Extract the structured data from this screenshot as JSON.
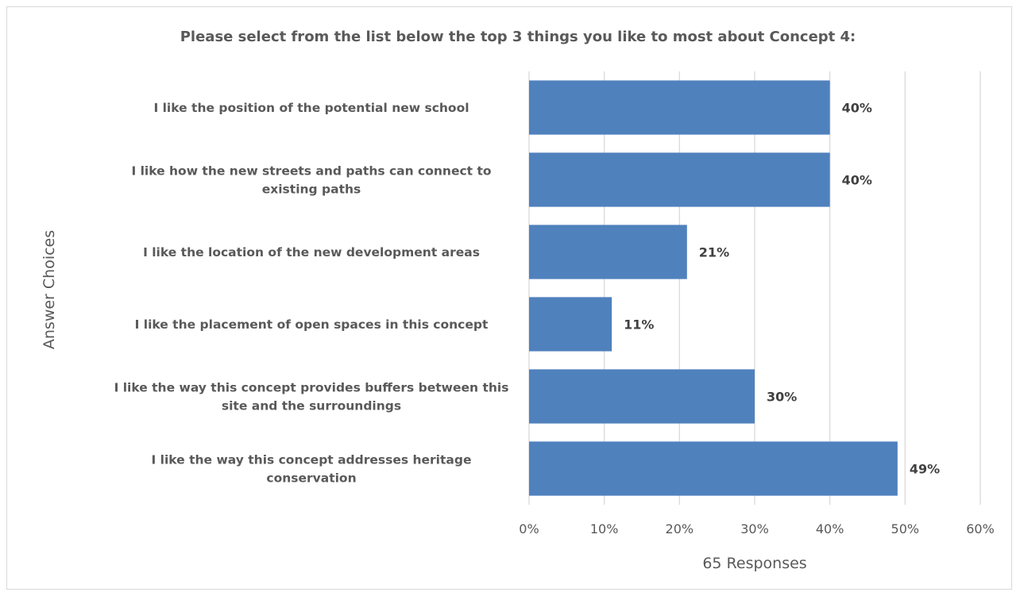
{
  "chart_data": {
    "type": "bar",
    "orientation": "horizontal",
    "title": "Please select from the list below the top 3 things you like to most about Concept 4:",
    "xlabel": "65 Responses",
    "ylabel": "Answer Choices",
    "categories": [
      [
        "I like the position of the potential new school"
      ],
      [
        "I like how the new streets and paths can connect to",
        "existing paths"
      ],
      [
        "I like the location of the new development areas"
      ],
      [
        "I like the placement of open spaces in this concept"
      ],
      [
        "I like the way this concept provides buffers between this",
        "site and the surroundings"
      ],
      [
        "I like the way this concept addresses heritage",
        "conservation"
      ]
    ],
    "values": [
      40,
      40,
      21,
      11,
      30,
      49
    ],
    "data_labels": [
      "40%",
      "40%",
      "21%",
      "11%",
      "30%",
      "49%"
    ],
    "xlim": [
      0,
      60
    ],
    "xticks": [
      "0%",
      "10%",
      "20%",
      "30%",
      "40%",
      "50%",
      "60%"
    ],
    "grid": true,
    "legend": "none",
    "bar_color": "#4f81bd"
  }
}
